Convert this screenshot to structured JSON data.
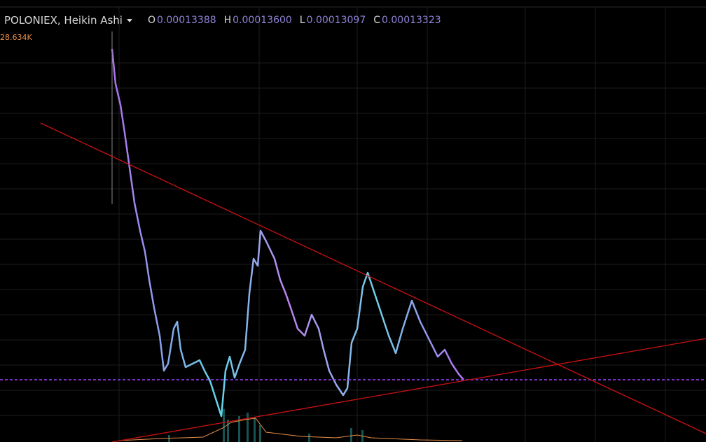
{
  "header": {
    "symbol": "POLONIEX, Heikin Ashi",
    "ohlc": [
      {
        "label": "O",
        "value": "0.00013388"
      },
      {
        "label": "H",
        "value": "0.00013600"
      },
      {
        "label": "L",
        "value": "0.00013097"
      },
      {
        "label": "C",
        "value": "0.00013323"
      }
    ]
  },
  "volume_label": "28.634K"
}
